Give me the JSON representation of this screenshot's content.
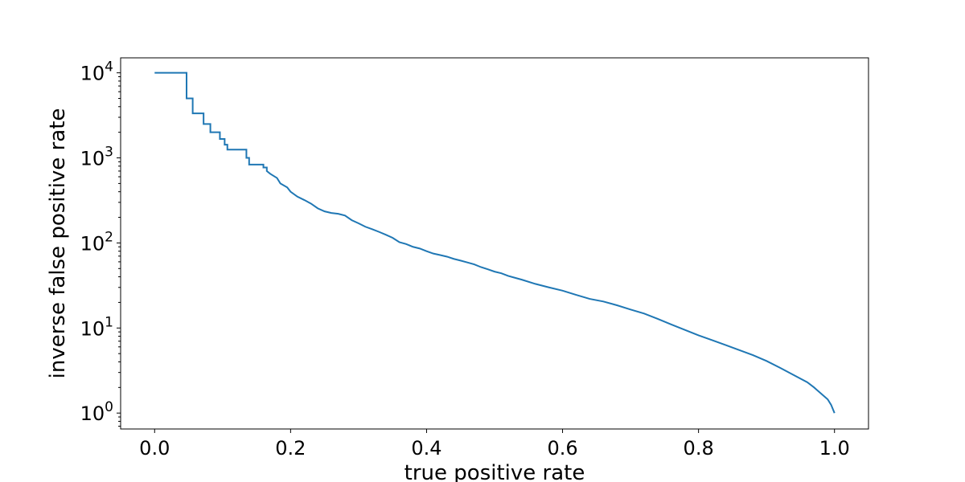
{
  "chart_data": {
    "type": "line",
    "title": "",
    "xlabel": "true positive rate",
    "ylabel": "inverse false positive rate",
    "xlim": [
      -0.05,
      1.05
    ],
    "ylim": [
      0.65,
      15000
    ],
    "yscale": "log",
    "grid": false,
    "x_ticks": [
      {
        "value": 0.0,
        "label": "0.0"
      },
      {
        "value": 0.2,
        "label": "0.2"
      },
      {
        "value": 0.4,
        "label": "0.4"
      },
      {
        "value": 0.6,
        "label": "0.6"
      },
      {
        "value": 0.8,
        "label": "0.8"
      },
      {
        "value": 1.0,
        "label": "1.0"
      }
    ],
    "y_ticks": [
      {
        "value": 1,
        "base": "10",
        "exp": "0"
      },
      {
        "value": 10,
        "base": "10",
        "exp": "1"
      },
      {
        "value": 100,
        "base": "10",
        "exp": "2"
      },
      {
        "value": 1000,
        "base": "10",
        "exp": "3"
      },
      {
        "value": 10000,
        "base": "10",
        "exp": "4"
      }
    ],
    "series": [
      {
        "color": "#1f77b4",
        "step": true,
        "points": [
          [
            0.0,
            10000
          ],
          [
            0.047,
            10000
          ],
          [
            0.047,
            5000
          ],
          [
            0.056,
            5000
          ],
          [
            0.056,
            3333
          ],
          [
            0.072,
            3333
          ],
          [
            0.072,
            2500
          ],
          [
            0.082,
            2500
          ],
          [
            0.082,
            2000
          ],
          [
            0.096,
            2000
          ],
          [
            0.096,
            1667
          ],
          [
            0.103,
            1667
          ],
          [
            0.103,
            1429
          ],
          [
            0.107,
            1429
          ],
          [
            0.107,
            1250
          ],
          [
            0.135,
            1250
          ],
          [
            0.135,
            1000
          ],
          [
            0.139,
            1000
          ],
          [
            0.139,
            833
          ],
          [
            0.16,
            833
          ],
          [
            0.16,
            770
          ],
          [
            0.165,
            770
          ],
          [
            0.165,
            700
          ],
          [
            0.17,
            650
          ],
          [
            0.18,
            580
          ],
          [
            0.185,
            500
          ],
          [
            0.195,
            450
          ],
          [
            0.2,
            400
          ],
          [
            0.21,
            350
          ],
          [
            0.22,
            320
          ],
          [
            0.23,
            290
          ],
          [
            0.24,
            255
          ],
          [
            0.25,
            235
          ],
          [
            0.26,
            225
          ],
          [
            0.27,
            220
          ],
          [
            0.28,
            210
          ],
          [
            0.29,
            185
          ],
          [
            0.3,
            170
          ],
          [
            0.31,
            155
          ],
          [
            0.32,
            145
          ],
          [
            0.33,
            135
          ],
          [
            0.34,
            125
          ],
          [
            0.35,
            115
          ],
          [
            0.36,
            102
          ],
          [
            0.37,
            97
          ],
          [
            0.38,
            90
          ],
          [
            0.39,
            86
          ],
          [
            0.4,
            80
          ],
          [
            0.41,
            75
          ],
          [
            0.42,
            72
          ],
          [
            0.43,
            69
          ],
          [
            0.44,
            65
          ],
          [
            0.45,
            62
          ],
          [
            0.46,
            59
          ],
          [
            0.47,
            56
          ],
          [
            0.48,
            52
          ],
          [
            0.49,
            49
          ],
          [
            0.5,
            46
          ],
          [
            0.51,
            44
          ],
          [
            0.52,
            41
          ],
          [
            0.54,
            37
          ],
          [
            0.56,
            33
          ],
          [
            0.58,
            30
          ],
          [
            0.6,
            27.5
          ],
          [
            0.62,
            24.5
          ],
          [
            0.64,
            22
          ],
          [
            0.66,
            20.5
          ],
          [
            0.68,
            18.5
          ],
          [
            0.7,
            16.5
          ],
          [
            0.72,
            14.8
          ],
          [
            0.74,
            12.8
          ],
          [
            0.76,
            11
          ],
          [
            0.78,
            9.5
          ],
          [
            0.8,
            8.2
          ],
          [
            0.82,
            7.2
          ],
          [
            0.84,
            6.3
          ],
          [
            0.86,
            5.5
          ],
          [
            0.88,
            4.8
          ],
          [
            0.9,
            4.1
          ],
          [
            0.92,
            3.4
          ],
          [
            0.94,
            2.8
          ],
          [
            0.96,
            2.3
          ],
          [
            0.97,
            2.0
          ],
          [
            0.98,
            1.7
          ],
          [
            0.99,
            1.45
          ],
          [
            0.995,
            1.25
          ],
          [
            1.0,
            1.0
          ]
        ]
      }
    ]
  }
}
